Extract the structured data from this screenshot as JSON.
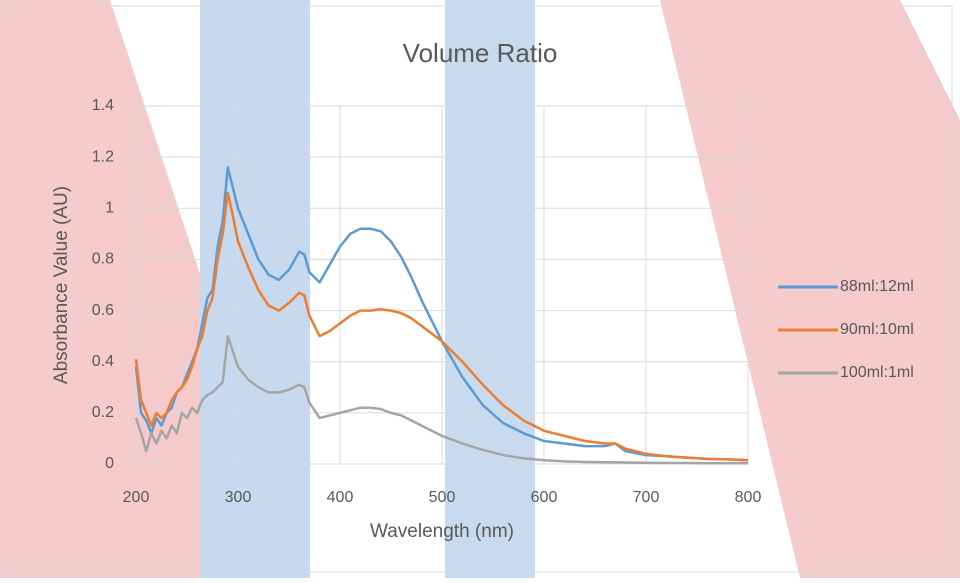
{
  "chart_data": {
    "type": "line",
    "title": "Volume Ratio",
    "x_label": "Wavelength (nm)",
    "y_label": "Absorbance Value (AU)",
    "x": [
      200,
      205,
      210,
      215,
      220,
      225,
      230,
      235,
      240,
      245,
      250,
      255,
      260,
      265,
      270,
      275,
      280,
      285,
      290,
      295,
      300,
      310,
      320,
      330,
      340,
      350,
      360,
      365,
      370,
      380,
      390,
      400,
      410,
      420,
      430,
      440,
      450,
      460,
      470,
      480,
      490,
      500,
      520,
      540,
      560,
      580,
      600,
      620,
      640,
      660,
      670,
      680,
      700,
      720,
      740,
      760,
      780,
      800
    ],
    "series": [
      {
        "name": "88ml:12ml",
        "color": "#5b9bd5",
        "values": [
          0.38,
          0.2,
          0.17,
          0.12,
          0.18,
          0.15,
          0.2,
          0.22,
          0.28,
          0.3,
          0.35,
          0.4,
          0.45,
          0.55,
          0.65,
          0.68,
          0.85,
          0.95,
          1.16,
          1.08,
          1.0,
          0.9,
          0.8,
          0.74,
          0.72,
          0.76,
          0.83,
          0.82,
          0.75,
          0.71,
          0.78,
          0.85,
          0.9,
          0.92,
          0.92,
          0.91,
          0.87,
          0.81,
          0.73,
          0.64,
          0.56,
          0.48,
          0.34,
          0.23,
          0.16,
          0.12,
          0.09,
          0.08,
          0.07,
          0.07,
          0.08,
          0.05,
          0.035,
          0.03,
          0.025,
          0.02,
          0.018,
          0.015
        ]
      },
      {
        "name": "90ml:10ml",
        "color": "#ed7d31",
        "values": [
          0.41,
          0.25,
          0.2,
          0.15,
          0.2,
          0.18,
          0.2,
          0.25,
          0.28,
          0.3,
          0.33,
          0.38,
          0.45,
          0.5,
          0.6,
          0.65,
          0.8,
          0.9,
          1.06,
          0.97,
          0.87,
          0.77,
          0.68,
          0.62,
          0.6,
          0.63,
          0.67,
          0.66,
          0.58,
          0.5,
          0.52,
          0.55,
          0.58,
          0.6,
          0.6,
          0.605,
          0.6,
          0.59,
          0.57,
          0.54,
          0.51,
          0.48,
          0.4,
          0.31,
          0.23,
          0.17,
          0.13,
          0.11,
          0.09,
          0.08,
          0.08,
          0.06,
          0.04,
          0.03,
          0.025,
          0.02,
          0.018,
          0.015
        ]
      },
      {
        "name": "100ml:1ml",
        "color": "#a5a5a5",
        "values": [
          0.18,
          0.12,
          0.05,
          0.12,
          0.08,
          0.13,
          0.1,
          0.15,
          0.12,
          0.2,
          0.18,
          0.22,
          0.2,
          0.25,
          0.27,
          0.28,
          0.3,
          0.32,
          0.5,
          0.44,
          0.38,
          0.33,
          0.3,
          0.28,
          0.28,
          0.29,
          0.31,
          0.3,
          0.24,
          0.18,
          0.19,
          0.2,
          0.21,
          0.22,
          0.22,
          0.215,
          0.2,
          0.19,
          0.17,
          0.15,
          0.13,
          0.11,
          0.08,
          0.055,
          0.035,
          0.022,
          0.015,
          0.01,
          0.008,
          0.007,
          0.007,
          0.006,
          0.005,
          0.004,
          0.004,
          0.003,
          0.003,
          0.003
        ]
      }
    ],
    "xlim": [
      200,
      800
    ],
    "xticks": [
      200,
      300,
      400,
      500,
      600,
      700,
      800
    ],
    "ylim": [
      0,
      1.4
    ],
    "yticks": [
      0,
      0.2,
      0.4,
      0.6,
      0.8,
      1,
      1.2,
      1.4
    ],
    "grid": true,
    "legend": "right"
  }
}
